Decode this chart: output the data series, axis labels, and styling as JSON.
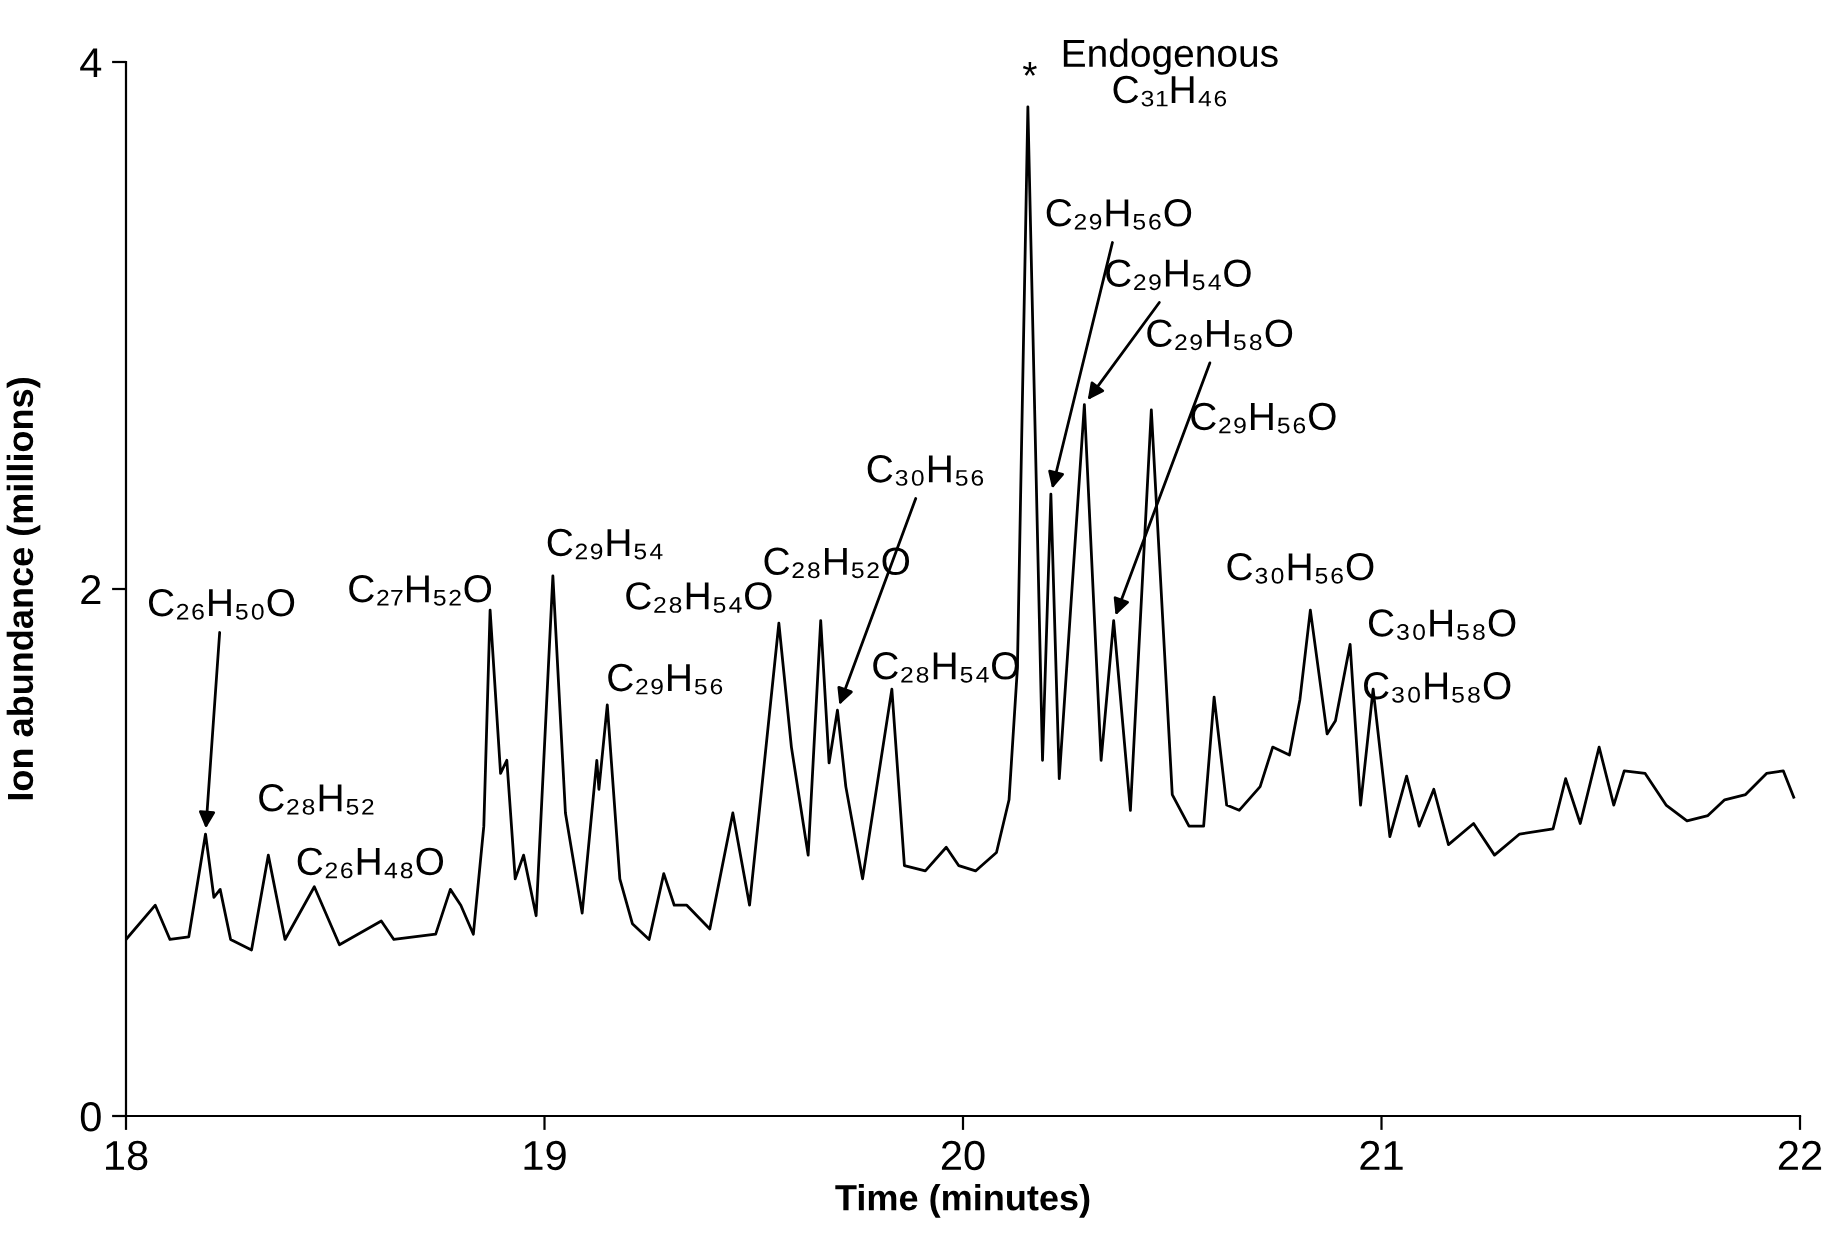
{
  "chart_data": {
    "type": "line",
    "xlabel": "Time (minutes)",
    "ylabel": "Ion abundance (millions)",
    "xlim": [
      18,
      22
    ],
    "ylim": [
      0,
      4
    ],
    "xticks": [
      18,
      19,
      20,
      21,
      22
    ],
    "yticks": [
      0,
      2,
      4
    ],
    "grid": false,
    "legend": false,
    "marker": "none",
    "line_style": "solid",
    "series": [
      {
        "color": "#000000",
        "x": [
          18.0,
          18.07,
          18.105,
          18.15,
          18.19,
          18.21,
          18.225,
          18.25,
          18.3,
          18.34,
          18.38,
          18.45,
          18.51,
          18.61,
          18.64,
          18.74,
          18.775,
          18.8,
          18.83,
          18.855,
          18.87,
          18.895,
          18.91,
          18.93,
          18.95,
          18.98,
          19.02,
          19.05,
          19.09,
          19.125,
          19.13,
          19.15,
          19.18,
          19.21,
          19.25,
          19.285,
          19.31,
          19.34,
          19.395,
          19.45,
          19.49,
          19.56,
          19.59,
          19.63,
          19.66,
          19.68,
          19.7,
          19.72,
          19.76,
          19.83,
          19.86,
          19.91,
          19.96,
          19.99,
          20.03,
          20.08,
          20.11,
          20.13,
          20.155,
          20.19,
          20.21,
          20.23,
          20.29,
          20.33,
          20.36,
          20.4,
          20.45,
          20.5,
          20.54,
          20.575,
          20.6,
          20.63,
          20.66,
          20.71,
          20.74,
          20.78,
          20.805,
          20.83,
          20.87,
          20.89,
          20.925,
          20.95,
          20.98,
          21.02,
          21.06,
          21.09,
          21.125,
          21.16,
          21.22,
          21.27,
          21.33,
          21.41,
          21.44,
          21.475,
          21.52,
          21.555,
          21.58,
          21.63,
          21.68,
          21.73,
          21.78,
          21.82,
          21.87,
          21.92,
          21.96,
          21.985
        ],
        "values": [
          0.67,
          0.8,
          0.67,
          0.68,
          1.07,
          0.83,
          0.86,
          0.67,
          0.63,
          0.99,
          0.67,
          0.87,
          0.65,
          0.74,
          0.67,
          0.69,
          0.86,
          0.8,
          0.69,
          1.1,
          1.92,
          1.3,
          1.35,
          0.9,
          0.99,
          0.76,
          2.05,
          1.15,
          0.77,
          1.35,
          1.24,
          1.56,
          0.9,
          0.73,
          0.67,
          0.92,
          0.8,
          0.8,
          0.71,
          1.15,
          0.8,
          1.87,
          1.4,
          0.99,
          1.88,
          1.34,
          1.54,
          1.25,
          0.9,
          1.62,
          0.95,
          0.93,
          1.02,
          0.95,
          0.93,
          1.0,
          1.2,
          1.7,
          3.83,
          1.35,
          2.36,
          1.28,
          2.7,
          1.35,
          1.88,
          1.16,
          2.68,
          1.22,
          1.1,
          1.1,
          1.59,
          1.18,
          1.16,
          1.25,
          1.4,
          1.37,
          1.58,
          1.92,
          1.45,
          1.5,
          1.79,
          1.18,
          1.62,
          1.06,
          1.29,
          1.1,
          1.24,
          1.03,
          1.11,
          0.99,
          1.07,
          1.09,
          1.28,
          1.11,
          1.4,
          1.18,
          1.31,
          1.3,
          1.18,
          1.12,
          1.14,
          1.2,
          1.22,
          1.3,
          1.31,
          1.21
        ]
      }
    ],
    "annotations": [
      {
        "text": "C₂₆H₅₀O",
        "x": 18.19,
        "y": 1.07
      },
      {
        "text": "C₂₈H₅₂",
        "x": 18.34,
        "y": 0.99
      },
      {
        "text": "C₂₆H₄₈O",
        "x": 18.45,
        "y": 0.87
      },
      {
        "text": "C₂₇H₅₂O",
        "x": 18.87,
        "y": 1.92
      },
      {
        "text": "C₂₉H₅₄",
        "x": 19.02,
        "y": 2.05
      },
      {
        "text": "C₂₉H₅₆",
        "x": 19.15,
        "y": 1.56
      },
      {
        "text": "C₂₈H₅₄O",
        "x": 19.56,
        "y": 1.87
      },
      {
        "text": "C₂₈H₅₂O",
        "x": 19.66,
        "y": 1.88
      },
      {
        "text": "C₃₀H₅₆",
        "x": 19.7,
        "y": 1.54
      },
      {
        "text": "C₂₈H₅₄O",
        "x": 19.83,
        "y": 1.62
      },
      {
        "text": "*",
        "x": 20.155,
        "y": 3.83
      },
      {
        "text": "Endogenous\nC₃₁H₄₆",
        "x": 20.155,
        "y": 3.83
      },
      {
        "text": "C₂₉H₅₆O",
        "x": 20.21,
        "y": 2.36
      },
      {
        "text": "C₂₉H₅₄O",
        "x": 20.29,
        "y": 2.7
      },
      {
        "text": "C₂₉H₅₈O",
        "x": 20.36,
        "y": 1.88
      },
      {
        "text": "C₂₉H₅₆O",
        "x": 20.45,
        "y": 2.68
      },
      {
        "text": "C₃₀H₅₆O",
        "x": 20.83,
        "y": 1.92
      },
      {
        "text": "C₃₀H₅₈O",
        "x": 20.925,
        "y": 1.79
      },
      {
        "text": "C₃₀H₅₈O",
        "x": 20.98,
        "y": 1.62
      }
    ]
  }
}
